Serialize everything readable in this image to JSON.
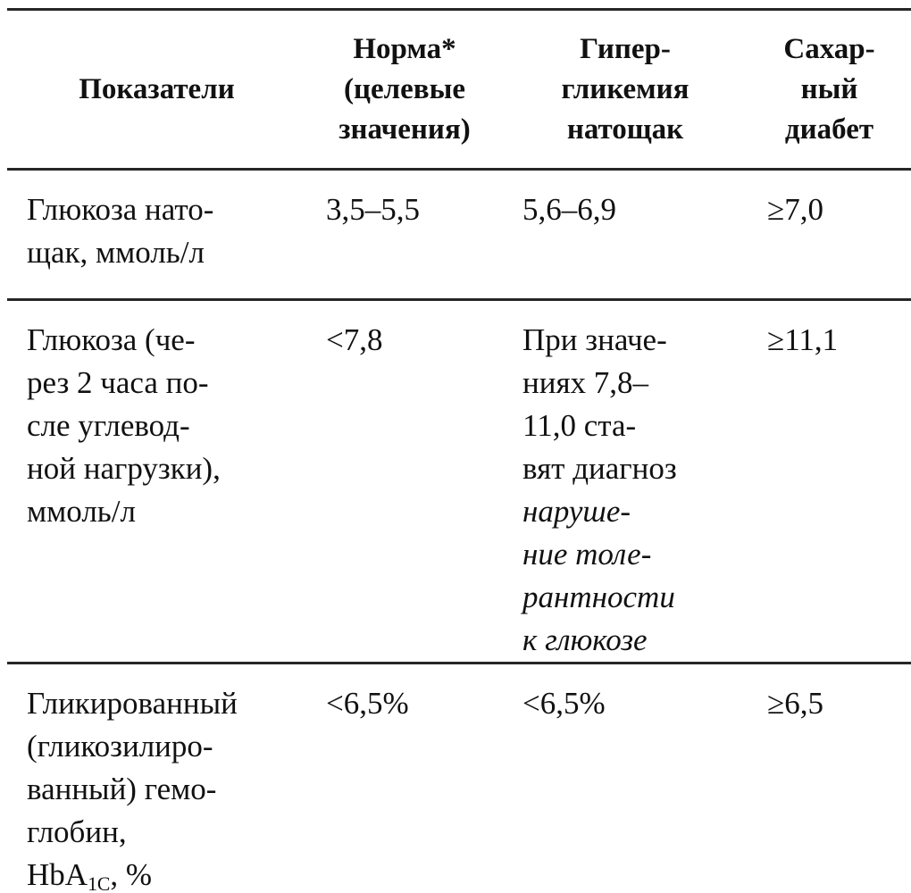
{
  "table": {
    "headers": [
      {
        "lines": [
          [
            {
              "t": "Показатели"
            }
          ]
        ]
      },
      {
        "lines": [
          [
            {
              "t": "Норма*"
            }
          ],
          [
            {
              "t": "(целевые"
            }
          ],
          [
            {
              "t": "значения)"
            }
          ]
        ]
      },
      {
        "lines": [
          [
            {
              "t": "Гипер-"
            }
          ],
          [
            {
              "t": "гликемия"
            }
          ],
          [
            {
              "t": "натощак"
            }
          ]
        ]
      },
      {
        "lines": [
          [
            {
              "t": "Сахар-"
            }
          ],
          [
            {
              "t": "ный"
            }
          ],
          [
            {
              "t": "диабет"
            }
          ]
        ]
      }
    ],
    "rows": [
      {
        "indicator": {
          "lines": [
            [
              {
                "t": "Глюкоза нато-"
              }
            ],
            [
              {
                "t": "щак, ммоль/л"
              }
            ]
          ]
        },
        "norm": {
          "lines": [
            [
              {
                "t": "3,5–5,5"
              }
            ]
          ]
        },
        "hyper": {
          "lines": [
            [
              {
                "t": "5,6–6,9"
              }
            ]
          ]
        },
        "diabetes": {
          "lines": [
            [
              {
                "t": "≥7,0"
              }
            ]
          ]
        }
      },
      {
        "indicator": {
          "lines": [
            [
              {
                "t": "Глюкоза (че-"
              }
            ],
            [
              {
                "t": "рез 2 часа по-"
              }
            ],
            [
              {
                "t": "сле углевод-"
              }
            ],
            [
              {
                "t": "ной нагрузки),"
              }
            ],
            [
              {
                "t": "ммоль/л"
              }
            ]
          ]
        },
        "norm": {
          "lines": [
            [
              {
                "t": "<7,8"
              }
            ]
          ]
        },
        "hyper": {
          "lines": [
            [
              {
                "t": "При значе-"
              }
            ],
            [
              {
                "t": "ниях 7,8–"
              }
            ],
            [
              {
                "t": "11,0 ста-"
              }
            ],
            [
              {
                "t": "вят диагноз"
              }
            ],
            [
              {
                "t": "наруше-",
                "italic": true
              }
            ],
            [
              {
                "t": "ние толе-",
                "italic": true
              }
            ],
            [
              {
                "t": "рантности",
                "italic": true
              }
            ],
            [
              {
                "t": "к глюкозе",
                "italic": true
              }
            ]
          ]
        },
        "diabetes": {
          "lines": [
            [
              {
                "t": "≥11,1"
              }
            ]
          ]
        }
      },
      {
        "indicator": {
          "lines": [
            [
              {
                "t": "Гликированный"
              }
            ],
            [
              {
                "t": "(гликозилиро-"
              }
            ],
            [
              {
                "t": "ванный) гемо-"
              }
            ],
            [
              {
                "t": "глобин,"
              }
            ],
            [
              {
                "t": "HbA"
              },
              {
                "t": "1C",
                "sub": true
              },
              {
                "t": ", %"
              }
            ]
          ]
        },
        "norm": {
          "lines": [
            [
              {
                "t": "<6,5%"
              }
            ]
          ]
        },
        "hyper": {
          "lines": [
            [
              {
                "t": "<6,5%"
              }
            ]
          ]
        },
        "diabetes": {
          "lines": [
            [
              {
                "t": "≥6,5"
              }
            ]
          ]
        }
      }
    ],
    "colors": {
      "rule": "#262626",
      "text": "#111111",
      "background": "#ffffff"
    }
  }
}
